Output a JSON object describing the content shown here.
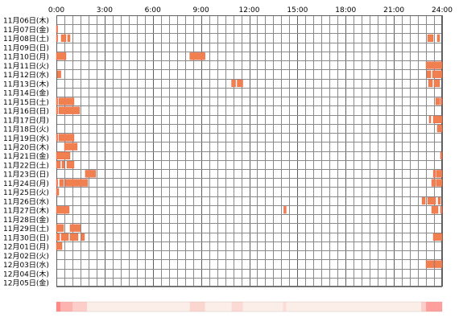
{
  "chart_data": {
    "type": "heatmap",
    "x_ticks": [
      "0:00",
      "3:00",
      "6:00",
      "9:00",
      "12:00",
      "15:00",
      "18:00",
      "21:00",
      "24:00"
    ],
    "x_range_hours": [
      0,
      24
    ],
    "rows": [
      {
        "label": "11月06日(木)",
        "segments": []
      },
      {
        "label": "11月07日(金)",
        "segments": [
          [
            0.0,
            0.08
          ]
        ]
      },
      {
        "label": "11月08日(土)",
        "segments": [
          [
            0.0,
            0.08
          ],
          [
            0.3,
            0.6
          ],
          [
            0.7,
            0.85
          ],
          [
            23.1,
            23.45
          ],
          [
            23.7,
            23.85
          ]
        ]
      },
      {
        "label": "11月09日(日)",
        "segments": []
      },
      {
        "label": "11月10日(月)",
        "segments": [
          [
            0.0,
            0.6
          ],
          [
            8.3,
            9.25
          ]
        ]
      },
      {
        "label": "11月11日(火)",
        "segments": [
          [
            23.0,
            24.0
          ]
        ]
      },
      {
        "label": "11月12日(水)",
        "segments": [
          [
            0.05,
            0.28
          ],
          [
            23.05,
            23.3
          ],
          [
            23.4,
            24.0
          ]
        ]
      },
      {
        "label": "11月13日(木)",
        "segments": [
          [
            10.9,
            11.15
          ],
          [
            11.25,
            11.6
          ],
          [
            23.15,
            23.4
          ],
          [
            23.5,
            23.85
          ]
        ]
      },
      {
        "label": "11月14日(金)",
        "segments": []
      },
      {
        "label": "11月15日(土)",
        "segments": [
          [
            0.0,
            0.08
          ],
          [
            0.15,
            1.1
          ],
          [
            23.6,
            23.85
          ],
          [
            23.9,
            24.0
          ]
        ]
      },
      {
        "label": "11月16日(日)",
        "segments": [
          [
            0.0,
            0.08
          ],
          [
            0.15,
            1.45
          ]
        ]
      },
      {
        "label": "11月17日(月)",
        "segments": [
          [
            23.2,
            23.3
          ],
          [
            23.45,
            24.0
          ]
        ]
      },
      {
        "label": "11月18日(火)",
        "segments": [
          [
            23.7,
            24.0
          ]
        ]
      },
      {
        "label": "11月19日(水)",
        "segments": [
          [
            0.0,
            0.08
          ],
          [
            0.15,
            1.1
          ]
        ]
      },
      {
        "label": "11月20日(木)",
        "segments": [
          [
            0.5,
            1.3
          ]
        ]
      },
      {
        "label": "11月21日(金)",
        "segments": [
          [
            0.0,
            0.85
          ],
          [
            23.9,
            24.0
          ]
        ]
      },
      {
        "label": "11月22日(土)",
        "segments": [
          [
            0.0,
            0.25
          ],
          [
            0.35,
            0.5
          ],
          [
            0.65,
            1.1
          ]
        ]
      },
      {
        "label": "11月23日(日)",
        "segments": [
          [
            1.8,
            2.45
          ],
          [
            23.45,
            23.6
          ],
          [
            23.65,
            24.0
          ]
        ]
      },
      {
        "label": "11月24日(月)",
        "segments": [
          [
            0.0,
            0.08
          ],
          [
            0.2,
            0.45
          ],
          [
            0.55,
            1.95
          ],
          [
            23.35,
            23.6
          ],
          [
            23.65,
            24.0
          ]
        ]
      },
      {
        "label": "11月25日(火)",
        "segments": [
          [
            0.0,
            0.15
          ]
        ]
      },
      {
        "label": "11月26日(水)",
        "segments": [
          [
            22.75,
            22.95
          ],
          [
            23.1,
            23.6
          ],
          [
            23.75,
            23.9
          ]
        ]
      },
      {
        "label": "11月27日(木)",
        "segments": [
          [
            0.0,
            0.8
          ],
          [
            14.15,
            14.3
          ],
          [
            23.35,
            23.75
          ],
          [
            23.9,
            24.0
          ]
        ]
      },
      {
        "label": "11月28日(金)",
        "segments": []
      },
      {
        "label": "11月29日(土)",
        "segments": [
          [
            0.0,
            0.45
          ],
          [
            0.85,
            1.5
          ]
        ]
      },
      {
        "label": "11月30日(日)",
        "segments": [
          [
            0.0,
            0.2
          ],
          [
            0.3,
            0.75
          ],
          [
            0.85,
            1.35
          ],
          [
            1.55,
            1.75
          ],
          [
            23.45,
            24.0
          ]
        ]
      },
      {
        "label": "12月01日(月)",
        "segments": [
          [
            0.0,
            0.35
          ]
        ]
      },
      {
        "label": "12月02日(火)",
        "segments": []
      },
      {
        "label": "12月03日(水)",
        "segments": [
          [
            23.0,
            23.5
          ],
          [
            23.55,
            24.0
          ]
        ]
      },
      {
        "label": "12月04日(木)",
        "segments": []
      },
      {
        "label": "12月05日(金)",
        "segments": []
      }
    ],
    "summary_bar": [
      {
        "from": 0.0,
        "to": 0.25,
        "intensity": 0.75
      },
      {
        "from": 0.25,
        "to": 1.0,
        "intensity": 0.45
      },
      {
        "from": 1.0,
        "to": 1.9,
        "intensity": 0.25
      },
      {
        "from": 8.3,
        "to": 9.25,
        "intensity": 0.18
      },
      {
        "from": 10.9,
        "to": 11.6,
        "intensity": 0.15
      },
      {
        "from": 14.1,
        "to": 14.3,
        "intensity": 0.12
      },
      {
        "from": 22.7,
        "to": 23.0,
        "intensity": 0.25
      },
      {
        "from": 23.0,
        "to": 24.0,
        "intensity": 0.6
      }
    ],
    "colors": {
      "segment": "#f08050",
      "segment_edge": "#e85a3a",
      "grid": "#8a8a8a",
      "border": "#606060",
      "tick_text": "#000000",
      "summary_base": "#fbeee8",
      "summary_hot": "#ff6a6a"
    }
  }
}
